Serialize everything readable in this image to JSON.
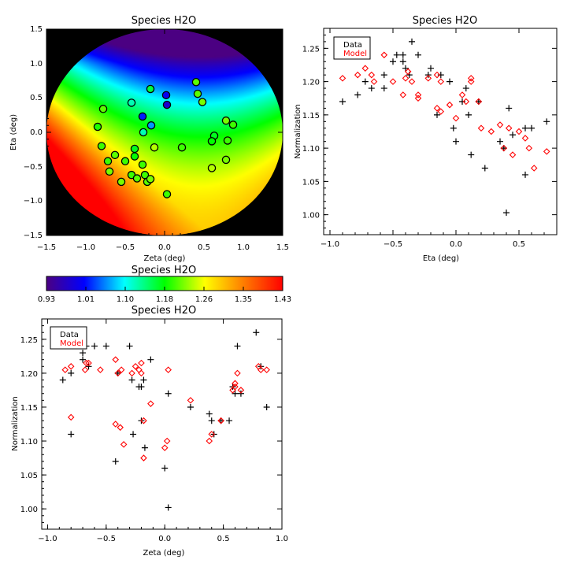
{
  "chart_data": [
    {
      "id": "map",
      "type": "heatmap",
      "title": "Species H2O",
      "xlabel": "Zeta (deg)",
      "ylabel": "Eta (deg)",
      "xlim": [
        -1.5,
        1.5
      ],
      "ylim": [
        -1.5,
        1.5
      ],
      "xticks": [
        "−1.5",
        "−1.0",
        "−0.5",
        "0.0",
        "0.5",
        "1.0",
        "1.5"
      ],
      "yticks": [
        "−1.5",
        "−1.0",
        "−0.5",
        "0.0",
        "0.5",
        "1.0",
        "1.5"
      ],
      "field_range": [
        0.93,
        1.43
      ],
      "background_color": "#000000",
      "points": [
        {
          "zeta": -0.78,
          "eta": 0.34,
          "value": 1.21
        },
        {
          "zeta": -0.42,
          "eta": 0.43,
          "value": 1.12
        },
        {
          "zeta": -0.28,
          "eta": 0.23,
          "value": 1.02
        },
        {
          "zeta": -0.18,
          "eta": 0.63,
          "value": 1.16
        },
        {
          "zeta": 0.02,
          "eta": 0.54,
          "value": 1.0
        },
        {
          "zeta": 0.03,
          "eta": 0.4,
          "value": 0.98
        },
        {
          "zeta": 0.4,
          "eta": 0.73,
          "value": 1.21
        },
        {
          "zeta": 0.42,
          "eta": 0.56,
          "value": 1.21
        },
        {
          "zeta": 0.48,
          "eta": 0.44,
          "value": 1.22
        },
        {
          "zeta": -0.85,
          "eta": 0.08,
          "value": 1.19
        },
        {
          "zeta": -0.27,
          "eta": 0.0,
          "value": 1.12
        },
        {
          "zeta": -0.17,
          "eta": 0.1,
          "value": 1.06
        },
        {
          "zeta": 0.63,
          "eta": -0.05,
          "value": 1.17
        },
        {
          "zeta": 0.78,
          "eta": 0.17,
          "value": 1.22
        },
        {
          "zeta": 0.87,
          "eta": 0.11,
          "value": 1.2
        },
        {
          "zeta": -0.8,
          "eta": -0.2,
          "value": 1.2
        },
        {
          "zeta": -0.63,
          "eta": -0.33,
          "value": 1.21
        },
        {
          "zeta": -0.38,
          "eta": -0.24,
          "value": 1.17
        },
        {
          "zeta": -0.13,
          "eta": -0.22,
          "value": 1.24
        },
        {
          "zeta": 0.22,
          "eta": -0.22,
          "value": 1.2
        },
        {
          "zeta": 0.6,
          "eta": -0.13,
          "value": 1.18
        },
        {
          "zeta": 0.8,
          "eta": -0.12,
          "value": 1.2
        },
        {
          "zeta": -0.72,
          "eta": -0.42,
          "value": 1.2
        },
        {
          "zeta": -0.5,
          "eta": -0.42,
          "value": 1.2
        },
        {
          "zeta": -0.38,
          "eta": -0.35,
          "value": 1.18
        },
        {
          "zeta": -0.28,
          "eta": -0.47,
          "value": 1.2
        },
        {
          "zeta": 0.6,
          "eta": -0.52,
          "value": 1.24
        },
        {
          "zeta": 0.78,
          "eta": -0.4,
          "value": 1.22
        },
        {
          "zeta": -0.7,
          "eta": -0.57,
          "value": 1.22
        },
        {
          "zeta": -0.42,
          "eta": -0.62,
          "value": 1.2
        },
        {
          "zeta": -0.55,
          "eta": -0.72,
          "value": 1.22
        },
        {
          "zeta": -0.35,
          "eta": -0.67,
          "value": 1.21
        },
        {
          "zeta": -0.25,
          "eta": -0.62,
          "value": 1.2
        },
        {
          "zeta": -0.22,
          "eta": -0.72,
          "value": 1.21
        },
        {
          "zeta": -0.18,
          "eta": -0.68,
          "value": 1.22
        },
        {
          "zeta": 0.03,
          "eta": -0.9,
          "value": 1.2
        }
      ]
    },
    {
      "id": "colorbar",
      "type": "heatmap",
      "title": "Species H2O",
      "range": [
        0.93,
        1.43
      ],
      "tick_labels": [
        "0.93",
        "1.01",
        "1.10",
        "1.18",
        "1.26",
        "1.35",
        "1.43"
      ]
    },
    {
      "id": "eta_plot",
      "type": "scatter",
      "title": "Species H2O",
      "xlabel": "Eta (deg)",
      "ylabel": "Normalization",
      "xlim": [
        -1.05,
        0.8
      ],
      "ylim": [
        0.97,
        1.28
      ],
      "xticks": [
        -1.0,
        -0.5,
        0.0,
        0.5
      ],
      "xtick_labels": [
        "−1.0",
        "−0.5",
        "0.0",
        "0.5"
      ],
      "yticks": [
        1.0,
        1.05,
        1.1,
        1.15,
        1.2,
        1.25
      ],
      "ytick_labels": [
        "1.00",
        "1.05",
        "1.10",
        "1.15",
        "1.20",
        "1.25"
      ],
      "legend_position": "top-left",
      "series": [
        {
          "name": "Data",
          "color": "#000000",
          "marker": "plus",
          "points": [
            [
              -0.9,
              1.17
            ],
            [
              -0.72,
              1.2
            ],
            [
              -0.67,
              1.19
            ],
            [
              -0.57,
              1.19
            ],
            [
              -0.57,
              1.21
            ],
            [
              -0.5,
              1.23
            ],
            [
              -0.47,
              1.24
            ],
            [
              -0.42,
              1.24
            ],
            [
              -0.42,
              1.23
            ],
            [
              -0.4,
              1.22
            ],
            [
              -0.37,
              1.21
            ],
            [
              -0.35,
              1.26
            ],
            [
              -0.3,
              1.24
            ],
            [
              -0.22,
              1.21
            ],
            [
              -0.2,
              1.22
            ],
            [
              -0.15,
              1.15
            ],
            [
              -0.12,
              1.21
            ],
            [
              -0.05,
              1.2
            ],
            [
              -0.02,
              1.13
            ],
            [
              0.0,
              1.11
            ],
            [
              0.05,
              1.17
            ],
            [
              0.08,
              1.19
            ],
            [
              0.1,
              1.15
            ],
            [
              0.12,
              1.09
            ],
            [
              0.18,
              1.17
            ],
            [
              0.23,
              1.07
            ],
            [
              0.35,
              1.11
            ],
            [
              0.38,
              1.1
            ],
            [
              0.42,
              1.16
            ],
            [
              0.45,
              1.12
            ],
            [
              0.55,
              1.06
            ],
            [
              0.55,
              1.13
            ],
            [
              0.6,
              1.13
            ],
            [
              0.4,
              1.003
            ],
            [
              0.72,
              1.14
            ],
            [
              -0.78,
              1.18
            ]
          ]
        },
        {
          "name": "Model",
          "color": "#ff0000",
          "marker": "diamond",
          "points": [
            [
              -0.9,
              1.205
            ],
            [
              -0.78,
              1.21
            ],
            [
              -0.72,
              1.22
            ],
            [
              -0.67,
              1.21
            ],
            [
              -0.65,
              1.2
            ],
            [
              -0.57,
              1.24
            ],
            [
              -0.5,
              1.2
            ],
            [
              -0.42,
              1.18
            ],
            [
              -0.4,
              1.205
            ],
            [
              -0.38,
              1.215
            ],
            [
              -0.35,
              1.2
            ],
            [
              -0.3,
              1.175
            ],
            [
              -0.3,
              1.18
            ],
            [
              -0.22,
              1.205
            ],
            [
              -0.15,
              1.21
            ],
            [
              -0.15,
              1.16
            ],
            [
              -0.12,
              1.155
            ],
            [
              -0.12,
              1.2
            ],
            [
              -0.05,
              1.165
            ],
            [
              0.0,
              1.145
            ],
            [
              0.05,
              1.18
            ],
            [
              0.08,
              1.17
            ],
            [
              0.12,
              1.205
            ],
            [
              0.12,
              1.2
            ],
            [
              0.18,
              1.17
            ],
            [
              0.2,
              1.13
            ],
            [
              0.28,
              1.125
            ],
            [
              0.35,
              1.135
            ],
            [
              0.38,
              1.1
            ],
            [
              0.42,
              1.13
            ],
            [
              0.45,
              1.09
            ],
            [
              0.5,
              1.125
            ],
            [
              0.55,
              1.115
            ],
            [
              0.58,
              1.1
            ],
            [
              0.62,
              1.07
            ],
            [
              0.72,
              1.095
            ]
          ]
        }
      ]
    },
    {
      "id": "zeta_plot",
      "type": "scatter",
      "title": "Species H2O",
      "xlabel": "Zeta (deg)",
      "ylabel": "Normalization",
      "xlim": [
        -1.05,
        1.0
      ],
      "ylim": [
        0.97,
        1.28
      ],
      "xticks": [
        -1.0,
        -0.5,
        0.0,
        0.5,
        1.0
      ],
      "xtick_labels": [
        "−1.0",
        "−0.5",
        "0.0",
        "0.5",
        "1.0"
      ],
      "yticks": [
        1.0,
        1.05,
        1.1,
        1.15,
        1.2,
        1.25
      ],
      "ytick_labels": [
        "1.00",
        "1.05",
        "1.10",
        "1.15",
        "1.20",
        "1.25"
      ],
      "legend_position": "top-left",
      "series": [
        {
          "name": "Data",
          "color": "#000000",
          "marker": "plus",
          "points": [
            [
              -0.87,
              1.19
            ],
            [
              -0.8,
              1.2
            ],
            [
              -0.8,
              1.11
            ],
            [
              -0.7,
              1.22
            ],
            [
              -0.7,
              1.23
            ],
            [
              -0.67,
              1.24
            ],
            [
              -0.6,
              1.24
            ],
            [
              -0.5,
              1.24
            ],
            [
              -0.42,
              1.07
            ],
            [
              -0.4,
              1.2
            ],
            [
              -0.3,
              1.24
            ],
            [
              -0.28,
              1.19
            ],
            [
              -0.27,
              1.11
            ],
            [
              -0.22,
              1.18
            ],
            [
              -0.2,
              1.18
            ],
            [
              -0.18,
              1.19
            ],
            [
              -0.17,
              1.09
            ],
            [
              -0.12,
              1.22
            ],
            [
              0.0,
              1.06
            ],
            [
              0.03,
              1.17
            ],
            [
              0.03,
              1.002
            ],
            [
              0.22,
              1.15
            ],
            [
              0.38,
              1.14
            ],
            [
              0.4,
              1.13
            ],
            [
              0.42,
              1.11
            ],
            [
              0.55,
              1.13
            ],
            [
              0.58,
              1.18
            ],
            [
              0.6,
              1.17
            ],
            [
              0.62,
              1.24
            ],
            [
              0.65,
              1.17
            ],
            [
              0.78,
              1.26
            ],
            [
              0.87,
              1.15
            ],
            [
              -0.2,
              1.13
            ],
            [
              0.48,
              1.13
            ],
            [
              -0.65,
              1.21
            ],
            [
              0.82,
              1.21
            ]
          ]
        },
        {
          "name": "Model",
          "color": "#ff0000",
          "marker": "diamond",
          "points": [
            [
              -0.85,
              1.205
            ],
            [
              -0.8,
              1.21
            ],
            [
              -0.8,
              1.135
            ],
            [
              -0.68,
              1.205
            ],
            [
              -0.67,
              1.215
            ],
            [
              -0.65,
              1.215
            ],
            [
              -0.55,
              1.205
            ],
            [
              -0.42,
              1.22
            ],
            [
              -0.42,
              1.125
            ],
            [
              -0.38,
              1.12
            ],
            [
              -0.37,
              1.205
            ],
            [
              -0.35,
              1.095
            ],
            [
              -0.28,
              1.2
            ],
            [
              -0.25,
              1.21
            ],
            [
              -0.22,
              1.205
            ],
            [
              -0.2,
              1.215
            ],
            [
              -0.18,
              1.13
            ],
            [
              -0.18,
              1.075
            ],
            [
              -0.12,
              1.155
            ],
            [
              0.0,
              1.09
            ],
            [
              0.02,
              1.1
            ],
            [
              0.03,
              1.205
            ],
            [
              0.22,
              1.16
            ],
            [
              0.38,
              1.1
            ],
            [
              0.4,
              1.11
            ],
            [
              0.48,
              1.13
            ],
            [
              0.58,
              1.175
            ],
            [
              0.6,
              1.18
            ],
            [
              0.62,
              1.2
            ],
            [
              0.65,
              1.175
            ],
            [
              0.8,
              1.21
            ],
            [
              0.82,
              1.205
            ],
            [
              0.87,
              1.205
            ],
            [
              -0.2,
              1.2
            ],
            [
              0.6,
              1.185
            ],
            [
              -0.4,
              1.2
            ]
          ]
        }
      ]
    }
  ]
}
